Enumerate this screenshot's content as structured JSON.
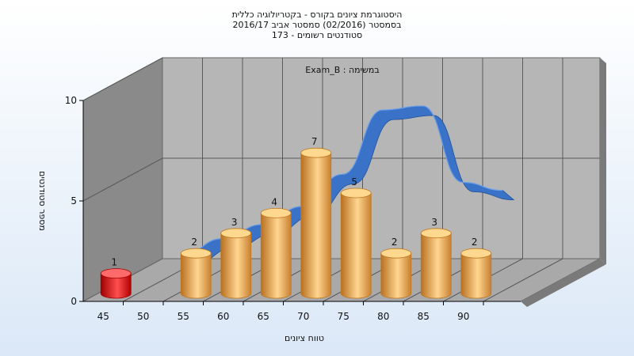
{
  "chart_data": {
    "type": "bar",
    "title_lines": [
      "היסטוגרמת ציונים בקורס - בקטריולוגיה כללית",
      "בסמסטר  (02/2016)  סמסטר אביב 2016/17",
      "סטודנטים רשומים - 173"
    ],
    "subtitle": "במשימה : Exam_B",
    "xlabel": "טווח ציונים",
    "ylabel": "מספר סטודנטים",
    "ylim": [
      0,
      10
    ],
    "yticks": [
      "0",
      "5",
      "10"
    ],
    "xticks": [
      "45",
      "50",
      "55",
      "60",
      "65",
      "70",
      "75",
      "80",
      "85",
      "90"
    ],
    "bars": [
      {
        "x": 45,
        "value": 1,
        "label": "1",
        "highlight": true
      },
      {
        "x": 55,
        "value": 2,
        "label": "2",
        "highlight": false
      },
      {
        "x": 60,
        "value": 3,
        "label": "3",
        "highlight": false
      },
      {
        "x": 65,
        "value": 4,
        "label": "4",
        "highlight": false
      },
      {
        "x": 70,
        "value": 7,
        "label": "7",
        "highlight": false
      },
      {
        "x": 75,
        "value": 5,
        "label": "5",
        "highlight": false
      },
      {
        "x": 80,
        "value": 2,
        "label": "2",
        "highlight": false
      },
      {
        "x": 85,
        "value": 3,
        "label": "3",
        "highlight": false
      },
      {
        "x": 90,
        "value": 2,
        "label": "2",
        "highlight": false
      }
    ],
    "curve": [
      {
        "x": 45,
        "y": 0.2
      },
      {
        "x": 50,
        "y": 1.0
      },
      {
        "x": 55,
        "y": 1.7
      },
      {
        "x": 60,
        "y": 2.6
      },
      {
        "x": 65,
        "y": 4.2
      },
      {
        "x": 70,
        "y": 7.4
      },
      {
        "x": 75,
        "y": 7.6
      },
      {
        "x": 80,
        "y": 3.8
      },
      {
        "x": 85,
        "y": 3.4
      }
    ],
    "grid": true,
    "colors": {
      "bar": "#f0b050",
      "bar_dark": "#c07820",
      "bar_light": "#ffd890",
      "highlight": "#e01010",
      "highlight_dark": "#a00000",
      "curve": "#3a72c8",
      "back_wall": "#b5b5b5",
      "side_wall": "#8a8a8a",
      "floor": "#a8a8a8"
    }
  }
}
